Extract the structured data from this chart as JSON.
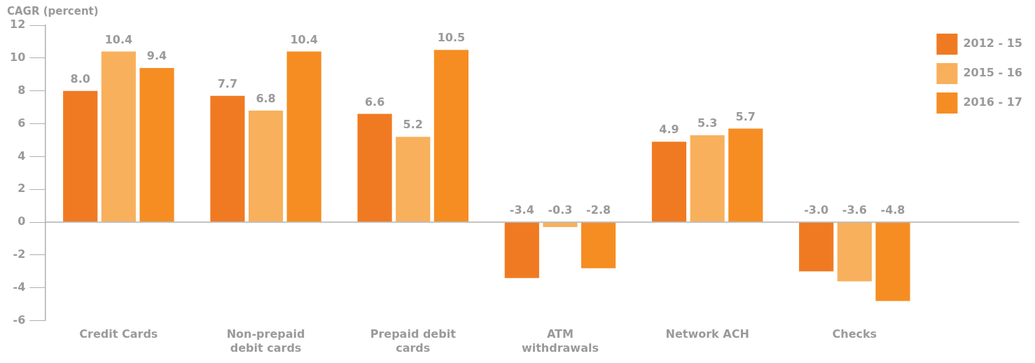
{
  "chart_data": {
    "type": "bar",
    "ylabel": "CAGR (percent)",
    "categories": [
      "Credit Cards",
      "Non-prepaid debit cards",
      "Prepaid debit cards",
      "ATM withdrawals",
      "Network ACH",
      "Checks"
    ],
    "series": [
      {
        "name": "2012 - 15",
        "color": "#f07a22",
        "values": [
          8.0,
          7.7,
          6.6,
          -3.4,
          4.9,
          -3.0
        ],
        "value_labels": [
          "8.0",
          "7.7",
          "6.6",
          "-3.4",
          "4.9",
          "-3.0"
        ]
      },
      {
        "name": "2015 - 16",
        "color": "#f8b05c",
        "values": [
          10.4,
          6.8,
          5.2,
          -0.3,
          5.3,
          -3.6
        ],
        "value_labels": [
          "10.4",
          "6.8",
          "5.2",
          "-0.3",
          "5.3",
          "-3.6"
        ]
      },
      {
        "name": "2016 - 17",
        "color": "#f68d22",
        "values": [
          9.4,
          10.4,
          10.5,
          -2.8,
          5.7,
          -4.8
        ],
        "value_labels": [
          "9.4",
          "10.4",
          "10.5",
          "-2.8",
          "5.7",
          "-4.8"
        ]
      }
    ],
    "ylim": [
      -6,
      12
    ],
    "yticks": [
      -6,
      -4,
      -2,
      0,
      2,
      4,
      6,
      8,
      10,
      12
    ],
    "legend": "top right"
  }
}
